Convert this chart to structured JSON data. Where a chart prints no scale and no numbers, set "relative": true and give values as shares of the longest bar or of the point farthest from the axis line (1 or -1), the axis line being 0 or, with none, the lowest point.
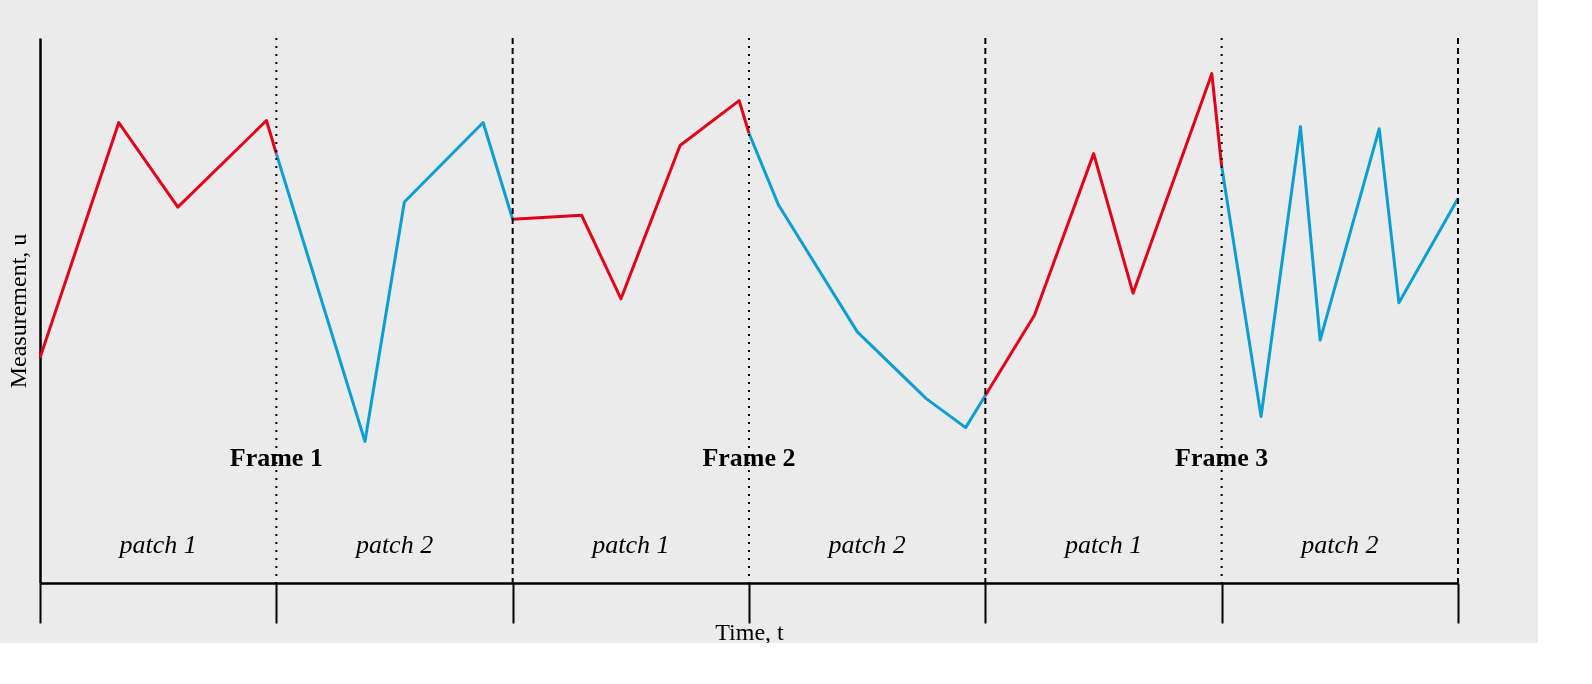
{
  "chart_data": {
    "type": "line",
    "relative": true,
    "xlabel": "Time, t",
    "ylabel": "Measurement, u",
    "categories": [
      null,
      null,
      null,
      null,
      null,
      null,
      null,
      null,
      null,
      null,
      null,
      null,
      null,
      null,
      null,
      null,
      null,
      null,
      null,
      null,
      null,
      null,
      null,
      null,
      null,
      null,
      null,
      null,
      null,
      null,
      null,
      null,
      null,
      null,
      null,
      null,
      null,
      null,
      null,
      null,
      null,
      null,
      null,
      null,
      null,
      null,
      null,
      null,
      null,
      null,
      null,
      null,
      null,
      null,
      null,
      null,
      null,
      null,
      null,
      null,
      null,
      null,
      null,
      null,
      null,
      null,
      null,
      null,
      null,
      null,
      null,
      null,
      null,
      null,
      null,
      null,
      null,
      null,
      null,
      null,
      null,
      null,
      null,
      null,
      null,
      null,
      null,
      null,
      null,
      null,
      null,
      null,
      null,
      null,
      null,
      null,
      null,
      null,
      null,
      null,
      null,
      null,
      null,
      null,
      null,
      null,
      null,
      null,
      null,
      null,
      null,
      null,
      null,
      null,
      null,
      null,
      null,
      null,
      null,
      null,
      null,
      null,
      null,
      null,
      null,
      null,
      null,
      null,
      null,
      null,
      null,
      null,
      null,
      null,
      null,
      null,
      null,
      null,
      null,
      null,
      null,
      null,
      null,
      null,
      null
    ],
    "tick_labels": false,
    "grid": false,
    "marker": "none",
    "line_style": "solid",
    "series": [
      {
        "color": "#e3001b",
        "values": [
          0.442,
          null,
          null,
          null,
          null,
          null,
          null,
          null,
          0.904,
          null,
          null,
          null,
          null,
          null,
          0.738,
          null,
          null,
          null,
          null,
          null,
          null,
          null,
          null,
          0.908,
          0.843,
          null,
          null,
          null,
          null,
          null,
          null,
          null,
          null,
          null,
          null,
          null,
          null,
          null,
          null,
          null,
          null,
          null,
          null,
          null,
          null,
          null,
          null,
          null,
          null,
          null,
          null,
          null,
          null,
          null,
          null,
          null,
          null,
          null,
          null,
          null,
          null,
          null,
          null,
          null,
          null,
          null,
          null,
          null,
          null,
          null,
          null,
          null,
          null,
          null,
          null,
          null,
          null,
          null,
          null,
          null,
          null,
          null,
          null,
          null,
          null,
          null,
          null,
          null,
          null,
          null,
          null,
          null,
          null,
          null,
          null,
          null,
          null,
          null,
          null,
          null,
          null,
          null,
          null,
          null,
          null,
          null,
          null,
          null,
          null,
          null,
          null,
          null,
          null,
          null,
          null,
          null,
          null,
          null,
          null,
          null,
          null,
          null,
          null,
          null,
          null,
          null,
          null,
          null,
          null,
          null,
          null,
          null,
          null,
          null,
          null,
          null,
          null,
          null,
          null,
          null,
          null,
          null,
          null,
          null,
          null
        ]
      },
      {
        "color": "#0a9fd4",
        "values": [
          null,
          null,
          null,
          null,
          null,
          null,
          null,
          null,
          null,
          null,
          null,
          null,
          null,
          null,
          null,
          null,
          null,
          null,
          null,
          null,
          null,
          null,
          null,
          null,
          0.843,
          null,
          null,
          null,
          null,
          null,
          null,
          null,
          null,
          0.278,
          null,
          null,
          null,
          0.748,
          null,
          null,
          null,
          null,
          null,
          null,
          null,
          0.904,
          null,
          null,
          0.714,
          null,
          null,
          null,
          null,
          null,
          null,
          null,
          null,
          null,
          null,
          null,
          null,
          null,
          null,
          null,
          null,
          null,
          null,
          null,
          null,
          null,
          null,
          null,
          null,
          null,
          null,
          null,
          null,
          null,
          null,
          null,
          null,
          null,
          null,
          null,
          null,
          null,
          null,
          null,
          null,
          null,
          null,
          null,
          null,
          null,
          null,
          null,
          null,
          null,
          null,
          null,
          null,
          null,
          null,
          null,
          null,
          null,
          null,
          null,
          null,
          null,
          null,
          null,
          null,
          null,
          null,
          null,
          null,
          null,
          null,
          null,
          null,
          null,
          null,
          null,
          null,
          null,
          null,
          null,
          null,
          null,
          null,
          null,
          null,
          null,
          null,
          null,
          null,
          null,
          null,
          null,
          null,
          null,
          null,
          null,
          null
        ]
      },
      {
        "color": "#e3001b",
        "values": [
          null,
          null,
          null,
          null,
          null,
          null,
          null,
          null,
          null,
          null,
          null,
          null,
          null,
          null,
          null,
          null,
          null,
          null,
          null,
          null,
          null,
          null,
          null,
          null,
          null,
          null,
          null,
          null,
          null,
          null,
          null,
          null,
          null,
          null,
          null,
          null,
          null,
          null,
          null,
          null,
          null,
          null,
          null,
          null,
          null,
          null,
          null,
          null,
          0.714,
          null,
          null,
          null,
          null,
          null,
          null,
          0.722,
          null,
          null,
          null,
          0.558,
          null,
          null,
          null,
          null,
          null,
          0.859,
          null,
          null,
          null,
          null,
          null,
          0.947,
          0.883,
          null,
          null,
          null,
          null,
          null,
          null,
          null,
          null,
          null,
          null,
          null,
          null,
          null,
          null,
          null,
          null,
          null,
          null,
          null,
          null,
          null,
          null,
          null,
          null,
          null,
          null,
          null,
          null,
          null,
          null,
          null,
          null,
          null,
          null,
          null,
          null,
          null,
          null,
          null,
          null,
          null,
          null,
          null,
          null,
          null,
          null,
          null,
          null,
          null,
          null,
          null,
          null,
          null,
          null,
          null,
          null,
          null,
          null,
          null,
          null,
          null,
          null,
          null,
          null,
          null,
          null,
          null,
          null,
          null,
          null,
          null,
          null
        ]
      },
      {
        "color": "#0a9fd4",
        "values": [
          null,
          null,
          null,
          null,
          null,
          null,
          null,
          null,
          null,
          null,
          null,
          null,
          null,
          null,
          null,
          null,
          null,
          null,
          null,
          null,
          null,
          null,
          null,
          null,
          null,
          null,
          null,
          null,
          null,
          null,
          null,
          null,
          null,
          null,
          null,
          null,
          null,
          null,
          null,
          null,
          null,
          null,
          null,
          null,
          null,
          null,
          null,
          null,
          null,
          null,
          null,
          null,
          null,
          null,
          null,
          null,
          null,
          null,
          null,
          null,
          null,
          null,
          null,
          null,
          null,
          null,
          null,
          null,
          null,
          null,
          null,
          null,
          0.883,
          null,
          null,
          0.742,
          null,
          null,
          null,
          null,
          null,
          null,
          null,
          0.493,
          null,
          null,
          null,
          null,
          null,
          null,
          0.362,
          null,
          null,
          null,
          0.305,
          null,
          0.368,
          null,
          null,
          null,
          null,
          null,
          null,
          null,
          null,
          null,
          null,
          null,
          null,
          null,
          null,
          null,
          null,
          null,
          null,
          null,
          null,
          null,
          null,
          null,
          null,
          null,
          null,
          null,
          null,
          null,
          null,
          null,
          null,
          null,
          null,
          null,
          null,
          null,
          null,
          null,
          null,
          null,
          null,
          null,
          null,
          null,
          null,
          null,
          null
        ]
      },
      {
        "color": "#e3001b",
        "values": [
          null,
          null,
          null,
          null,
          null,
          null,
          null,
          null,
          null,
          null,
          null,
          null,
          null,
          null,
          null,
          null,
          null,
          null,
          null,
          null,
          null,
          null,
          null,
          null,
          null,
          null,
          null,
          null,
          null,
          null,
          null,
          null,
          null,
          null,
          null,
          null,
          null,
          null,
          null,
          null,
          null,
          null,
          null,
          null,
          null,
          null,
          null,
          null,
          null,
          null,
          null,
          null,
          null,
          null,
          null,
          null,
          null,
          null,
          null,
          null,
          null,
          null,
          null,
          null,
          null,
          null,
          null,
          null,
          null,
          null,
          null,
          null,
          null,
          null,
          null,
          null,
          null,
          null,
          null,
          null,
          null,
          null,
          null,
          null,
          null,
          null,
          null,
          null,
          null,
          null,
          null,
          null,
          null,
          null,
          null,
          null,
          0.368,
          null,
          null,
          null,
          null,
          0.526,
          null,
          null,
          null,
          null,
          null,
          0.843,
          null,
          null,
          null,
          0.569,
          null,
          null,
          null,
          null,
          null,
          null,
          null,
          1.0,
          0.818,
          null,
          null,
          null,
          null,
          null,
          null,
          null,
          null,
          null,
          null,
          null,
          null,
          null,
          null,
          null,
          null,
          null,
          null,
          null,
          null,
          null,
          null,
          null,
          null
        ]
      },
      {
        "color": "#0a9fd4",
        "values": [
          null,
          null,
          null,
          null,
          null,
          null,
          null,
          null,
          null,
          null,
          null,
          null,
          null,
          null,
          null,
          null,
          null,
          null,
          null,
          null,
          null,
          null,
          null,
          null,
          null,
          null,
          null,
          null,
          null,
          null,
          null,
          null,
          null,
          null,
          null,
          null,
          null,
          null,
          null,
          null,
          null,
          null,
          null,
          null,
          null,
          null,
          null,
          null,
          null,
          null,
          null,
          null,
          null,
          null,
          null,
          null,
          null,
          null,
          null,
          null,
          null,
          null,
          null,
          null,
          null,
          null,
          null,
          null,
          null,
          null,
          null,
          null,
          null,
          null,
          null,
          null,
          null,
          null,
          null,
          null,
          null,
          null,
          null,
          null,
          null,
          null,
          null,
          null,
          null,
          null,
          null,
          null,
          null,
          null,
          null,
          null,
          null,
          null,
          null,
          null,
          null,
          null,
          null,
          null,
          null,
          null,
          null,
          null,
          null,
          null,
          null,
          null,
          null,
          null,
          null,
          null,
          null,
          null,
          null,
          null,
          0.818,
          null,
          null,
          null,
          0.327,
          null,
          null,
          null,
          0.896,
          null,
          0.477,
          null,
          null,
          null,
          null,
          null,
          0.892,
          null,
          0.55,
          null,
          null,
          null,
          null,
          null,
          0.755
        ]
      }
    ],
    "annotations": [
      "Frame 1",
      "Frame 2",
      "Frame 3",
      "patch 1",
      "patch 2",
      "patch 1",
      "patch 2",
      "patch 1",
      "patch 2"
    ]
  }
}
